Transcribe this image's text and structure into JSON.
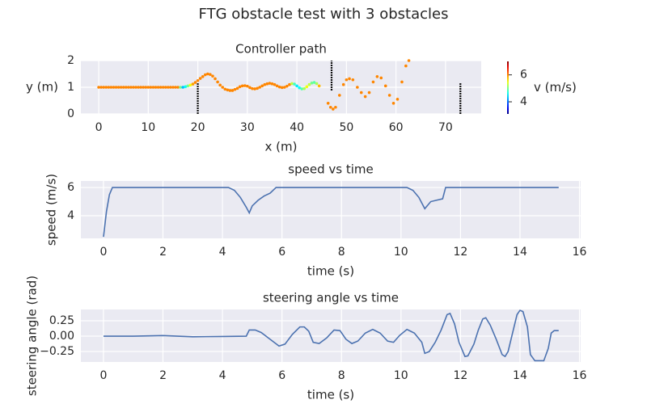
{
  "title": "FTG obstacle test with 3 obstacles",
  "chart_data": [
    {
      "type": "scatter",
      "title": "Controller path",
      "xlabel": "x (m)",
      "ylabel": "y (m)",
      "x": [
        0,
        0.5,
        1,
        1.5,
        2,
        2.5,
        3,
        3.5,
        4,
        4.5,
        5,
        5.5,
        6,
        6.5,
        7,
        7.5,
        8,
        8.5,
        9,
        9.5,
        10,
        10.5,
        11,
        11.5,
        12,
        12.5,
        13,
        13.5,
        14,
        14.5,
        15,
        15.5,
        16,
        16.5,
        17,
        17.5,
        18,
        18.5,
        19,
        19.5,
        20,
        20.5,
        21,
        21.5,
        22,
        22.5,
        23,
        23.5,
        24,
        24.5,
        25,
        25.5,
        26,
        26.5,
        27,
        27.5,
        28,
        28.5,
        29,
        29.5,
        30,
        30.5,
        31,
        31.5,
        32,
        32.5,
        33,
        33.5,
        34,
        34.5,
        35,
        35.5,
        36,
        36.5,
        37,
        37.5,
        38,
        38.5,
        39,
        39.5,
        40,
        40.5,
        41,
        41.5,
        42,
        42.5,
        43,
        43.5,
        44,
        44.5,
        46.3,
        46.8,
        47.3,
        47.8,
        48.6,
        49.4,
        50,
        50.6,
        51.3,
        52.2,
        53,
        53.8,
        54.6,
        55.4,
        56.2,
        57,
        57.9,
        58.7,
        59.5,
        60.3,
        61.2,
        62,
        62.6
      ],
      "values": [
        1,
        1,
        1,
        1,
        1,
        1,
        1,
        1,
        1,
        1,
        1,
        1,
        1,
        1,
        1,
        1,
        1,
        1,
        1,
        1,
        1,
        1,
        1,
        1,
        1,
        1,
        1,
        1,
        1,
        1,
        1,
        1,
        1,
        1,
        1,
        1.02,
        1.05,
        1.08,
        1.12,
        1.18,
        1.25,
        1.33,
        1.4,
        1.47,
        1.5,
        1.48,
        1.42,
        1.32,
        1.2,
        1.08,
        1.0,
        0.93,
        0.9,
        0.88,
        0.88,
        0.92,
        0.96,
        1.02,
        1.05,
        1.06,
        1.04,
        0.99,
        0.95,
        0.94,
        0.96,
        1.0,
        1.05,
        1.1,
        1.13,
        1.15,
        1.13,
        1.1,
        1.05,
        1.01,
        0.99,
        1.0,
        1.04,
        1.1,
        1.14,
        1.12,
        1.05,
        0.98,
        0.94,
        0.95,
        1.02,
        1.1,
        1.16,
        1.18,
        1.14,
        1.05,
        0.4,
        0.25,
        0.18,
        0.25,
        0.7,
        1.1,
        1.28,
        1.32,
        1.28,
        1.0,
        0.8,
        0.65,
        0.8,
        1.2,
        1.4,
        1.35,
        1.05,
        0.7,
        0.4,
        0.55,
        1.2,
        1.8,
        2.0
      ],
      "color_values": [
        6,
        6,
        6,
        6,
        6,
        6,
        6,
        6,
        6,
        6,
        6,
        6,
        6,
        6,
        6,
        6,
        6,
        6,
        6,
        6,
        6,
        6,
        6,
        6,
        6,
        6,
        6,
        6,
        6,
        6,
        6,
        6,
        6,
        5.0,
        4.3,
        4.6,
        5.0,
        5.5,
        5.9,
        6,
        6,
        6,
        6,
        6,
        6,
        6,
        6,
        6,
        6,
        6,
        6,
        6,
        6,
        6,
        6,
        6,
        6,
        6,
        6,
        6,
        6,
        6,
        6,
        6,
        6,
        6,
        6,
        6,
        6,
        6,
        6,
        6,
        6,
        6,
        6,
        6,
        6,
        6,
        5.3,
        4.8,
        4.5,
        4.6,
        4.9,
        5.2,
        5.5,
        5.3,
        5.0,
        4.9,
        5.2,
        5.8,
        6,
        6,
        6,
        6,
        6,
        6,
        6,
        6,
        6,
        6,
        6,
        6,
        6,
        6,
        6,
        6,
        6,
        6,
        6,
        6,
        6,
        6,
        6
      ],
      "colormap": "jet",
      "clim": [
        3.1,
        7.0
      ],
      "colorbar_label": "v (m/s)",
      "colorbar_ticks": [
        4,
        6
      ],
      "obstacles": [
        {
          "x": 20,
          "y": [
            0,
            1.15
          ]
        },
        {
          "x": 47,
          "y": [
            0.88,
            2
          ]
        },
        {
          "x": 73,
          "y": [
            0,
            1.15
          ]
        }
      ],
      "obstacle_color": "#111111",
      "xlim": [
        -3.6,
        77.2
      ],
      "xticks": [
        0,
        10,
        20,
        30,
        40,
        50,
        60,
        70
      ],
      "ylim": [
        0,
        2
      ],
      "yticks": [
        0,
        1,
        2
      ],
      "grid": true
    },
    {
      "type": "line",
      "title": "speed vs time",
      "xlabel": "time (s)",
      "ylabel": "speed (m/s)",
      "color": "#4c72b0",
      "x": [
        0,
        0.1,
        0.2,
        0.3,
        4.2,
        4.4,
        4.6,
        4.8,
        4.9,
        5.0,
        5.2,
        5.4,
        5.6,
        5.8,
        10.2,
        10.4,
        10.6,
        10.8,
        11.0,
        11.2,
        11.4,
        11.5,
        15.3
      ],
      "values": [
        2.5,
        4.3,
        5.5,
        6,
        6,
        5.8,
        5.3,
        4.6,
        4.2,
        4.7,
        5.1,
        5.4,
        5.6,
        6,
        6,
        5.8,
        5.3,
        4.5,
        5.0,
        5.1,
        5.2,
        6,
        6
      ],
      "xlim": [
        -0.76,
        16.04
      ],
      "xticks": [
        0,
        2,
        4,
        6,
        8,
        10,
        12,
        14,
        16
      ],
      "ylim": [
        2.4,
        6.46
      ],
      "yticks": [
        4,
        6
      ],
      "grid": true
    },
    {
      "type": "line",
      "title": "steering angle vs time",
      "xlabel": "time (s)",
      "ylabel": "steering angle (rad)",
      "color": "#4c72b0",
      "x": [
        0,
        1,
        2,
        3,
        4,
        4.8,
        4.9,
        5.1,
        5.3,
        5.6,
        5.9,
        6.1,
        6.35,
        6.6,
        6.75,
        6.9,
        7.05,
        7.25,
        7.5,
        7.75,
        7.95,
        8.15,
        8.35,
        8.55,
        8.8,
        9.05,
        9.3,
        9.55,
        9.75,
        9.95,
        10.2,
        10.45,
        10.7,
        10.8,
        10.95,
        11.15,
        11.35,
        11.55,
        11.65,
        11.8,
        11.95,
        12.15,
        12.25,
        12.45,
        12.6,
        12.75,
        12.85,
        13.0,
        13.2,
        13.4,
        13.5,
        13.6,
        13.75,
        13.9,
        14.0,
        14.1,
        14.25,
        14.35,
        14.5,
        14.8,
        14.95,
        15.05,
        15.15,
        15.3
      ],
      "values": [
        0,
        0,
        0.01,
        -0.01,
        -0.005,
        0,
        0.1,
        0.1,
        0.06,
        -0.05,
        -0.16,
        -0.13,
        0.03,
        0.15,
        0.15,
        0.08,
        -0.1,
        -0.12,
        -0.03,
        0.1,
        0.09,
        -0.05,
        -0.12,
        -0.08,
        0.05,
        0.11,
        0.05,
        -0.08,
        -0.1,
        0.01,
        0.11,
        0.05,
        -0.1,
        -0.28,
        -0.25,
        -0.1,
        0.1,
        0.35,
        0.37,
        0.2,
        -0.1,
        -0.33,
        -0.32,
        -0.13,
        0.1,
        0.28,
        0.3,
        0.18,
        -0.05,
        -0.3,
        -0.33,
        -0.25,
        0.05,
        0.35,
        0.42,
        0.4,
        0.15,
        -0.3,
        -0.4,
        -0.4,
        -0.2,
        0.05,
        0.09,
        0.09
      ],
      "xlim": [
        -0.76,
        16.04
      ],
      "xticks": [
        0,
        2,
        4,
        6,
        8,
        10,
        12,
        14,
        16
      ],
      "ylim": [
        -0.42,
        0.434
      ],
      "yticks": [
        {
          "value": -0.25,
          "label": "−0.25"
        },
        {
          "value": 0,
          "label": "0.00"
        },
        0.25
      ],
      "grid": true
    }
  ]
}
